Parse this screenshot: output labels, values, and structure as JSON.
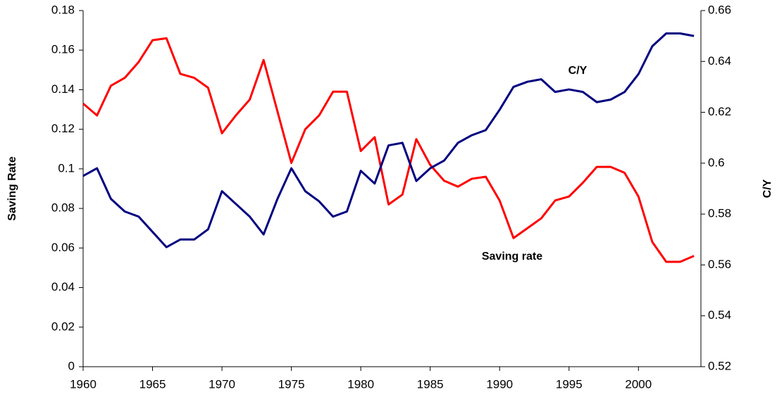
{
  "chart_data": {
    "type": "line",
    "x": [
      1960,
      1961,
      1962,
      1963,
      1964,
      1965,
      1966,
      1967,
      1968,
      1969,
      1970,
      1971,
      1972,
      1973,
      1974,
      1975,
      1976,
      1977,
      1978,
      1979,
      1980,
      1981,
      1982,
      1983,
      1984,
      1985,
      1986,
      1987,
      1988,
      1989,
      1990,
      1991,
      1992,
      1993,
      1994,
      1995,
      1996,
      1997,
      1998,
      1999,
      2000,
      2001,
      2002,
      2003,
      2004
    ],
    "series": [
      {
        "name": "Saving rate",
        "color": "#ff0000",
        "values": [
          0.133,
          0.127,
          0.142,
          0.146,
          0.154,
          0.165,
          0.166,
          0.148,
          0.146,
          0.141,
          0.118,
          0.127,
          0.135,
          0.155,
          0.129,
          0.103,
          0.12,
          0.127,
          0.139,
          0.139,
          0.109,
          0.116,
          0.082,
          0.087,
          0.115,
          0.102,
          0.094,
          0.091,
          0.095,
          0.096,
          0.084,
          0.065,
          0.07,
          0.075,
          0.084,
          0.086,
          0.093,
          0.101,
          0.101,
          0.098,
          0.086,
          0.063,
          0.053,
          0.053,
          0.056
        ]
      },
      {
        "name": "C/Y",
        "color": "#000080",
        "axis": "y2",
        "values": [
          0.595,
          0.598,
          0.586,
          0.581,
          0.579,
          0.573,
          0.567,
          0.57,
          0.57,
          0.574,
          0.589,
          0.584,
          0.579,
          0.572,
          0.586,
          0.598,
          0.589,
          0.585,
          0.579,
          0.581,
          0.597,
          0.592,
          0.607,
          0.608,
          0.593,
          0.598,
          0.601,
          0.608,
          0.611,
          0.613,
          0.621,
          0.63,
          0.632,
          0.633,
          0.628,
          0.629,
          0.628,
          0.624,
          0.625,
          0.628,
          0.635,
          0.646,
          0.651,
          0.651,
          0.65
        ]
      }
    ],
    "ylabel": "Saving Rate",
    "y2label": "C/Y",
    "xlim": [
      1960,
      2004.5
    ],
    "xticks": [
      1960,
      1965,
      1970,
      1975,
      1980,
      1985,
      1990,
      1995,
      2000
    ],
    "ylim": [
      0,
      0.18
    ],
    "yticks": [
      0,
      0.02,
      0.04,
      0.06,
      0.08,
      0.1,
      0.12,
      0.14,
      0.16,
      0.18
    ],
    "y2lim": [
      0.52,
      0.66
    ],
    "y2ticks": [
      0.52,
      0.54,
      0.56,
      0.58,
      0.6,
      0.62,
      0.64,
      0.66
    ],
    "grid": false
  }
}
